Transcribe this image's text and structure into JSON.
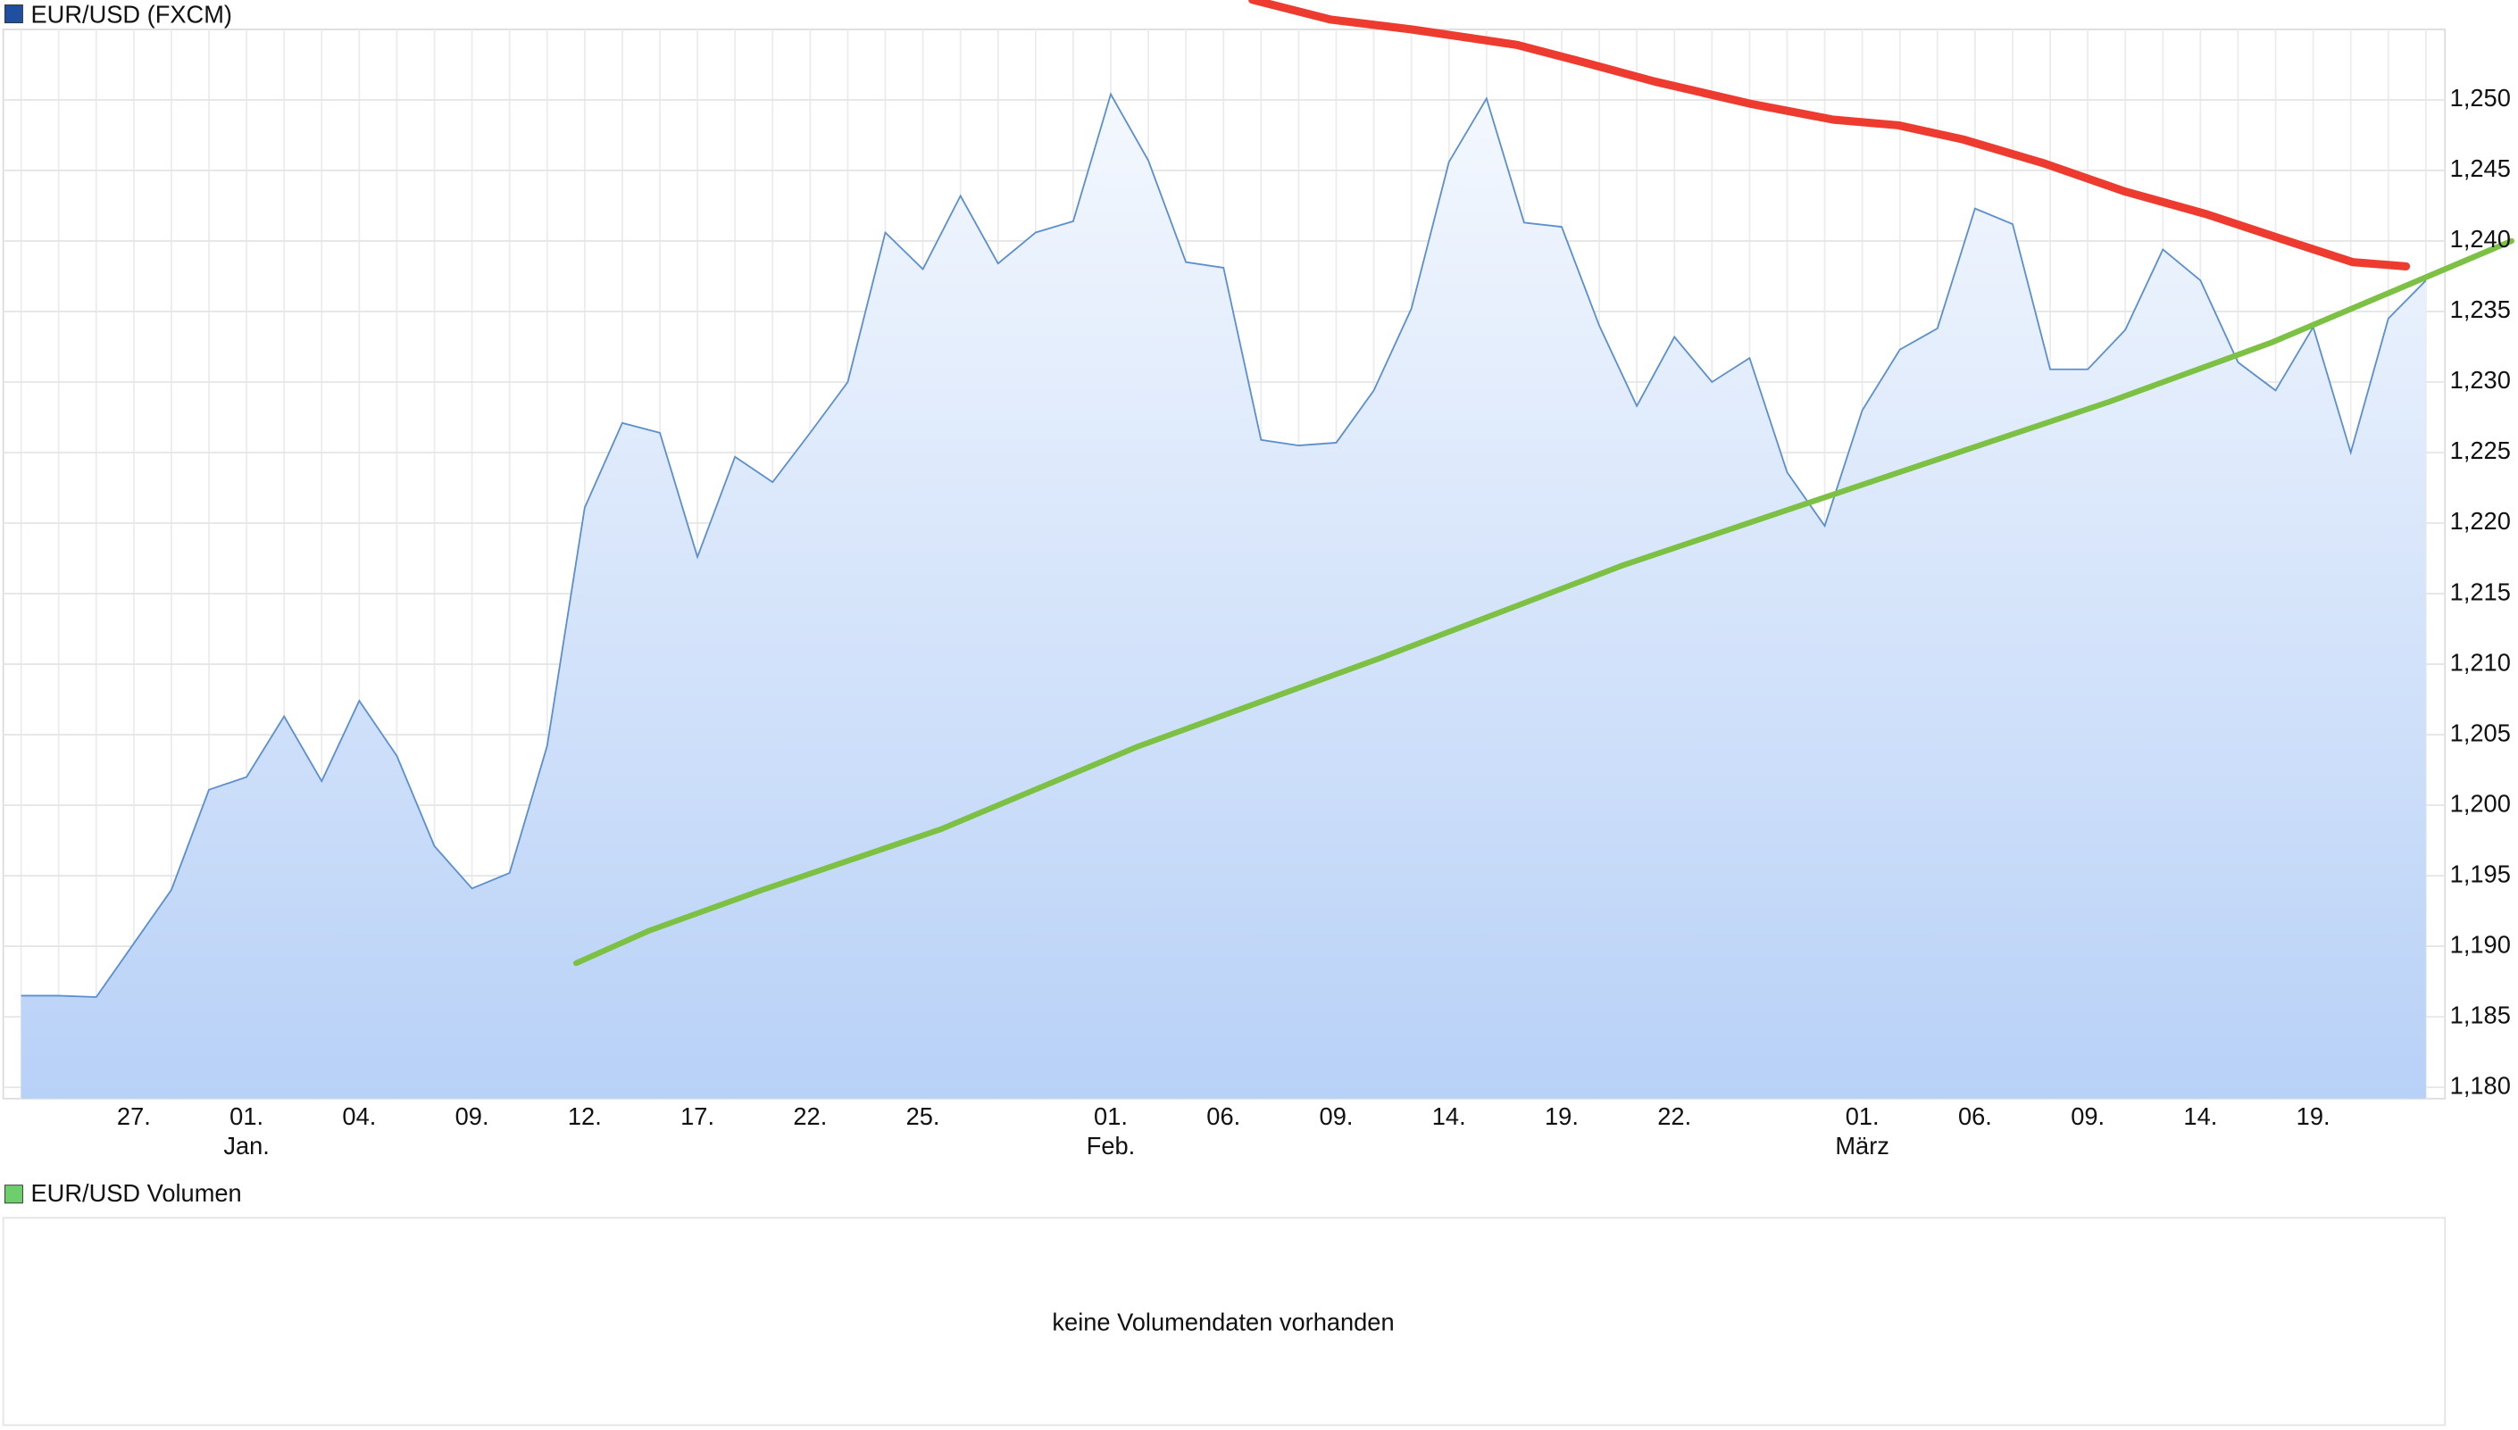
{
  "chart_data": {
    "type": "area",
    "title": "EUR/USD (FXCM)",
    "title_color": "#1f4fa0",
    "color": "#5b8fd0",
    "fill_top": "#f4f8fe",
    "fill_bottom": "#b8d1f7",
    "grid": true,
    "categories": [
      null,
      null,
      null,
      "27.",
      null,
      null,
      "01.",
      null,
      null,
      "04.",
      null,
      null,
      "09.",
      null,
      null,
      "12.",
      null,
      null,
      "17.",
      null,
      null,
      "22.",
      null,
      null,
      "25.",
      null,
      null,
      null,
      null,
      "01.",
      null,
      null,
      "06.",
      null,
      null,
      "09.",
      null,
      null,
      "14.",
      null,
      null,
      "19.",
      null,
      null,
      "22.",
      null,
      null,
      null,
      null,
      "01.",
      null,
      null,
      "06.",
      null,
      null,
      "09.",
      null,
      null,
      "14.",
      null,
      null,
      "19.",
      null,
      null,
      null
    ],
    "months": [
      null,
      null,
      null,
      null,
      null,
      null,
      "Jan.",
      null,
      null,
      null,
      null,
      null,
      null,
      null,
      null,
      null,
      null,
      null,
      null,
      null,
      null,
      null,
      null,
      null,
      null,
      null,
      null,
      null,
      null,
      "Feb.",
      null,
      null,
      null,
      null,
      null,
      null,
      null,
      null,
      null,
      null,
      null,
      null,
      null,
      null,
      null,
      null,
      null,
      null,
      null,
      "März",
      null,
      null,
      null,
      null,
      null,
      null,
      null,
      null,
      null,
      null,
      null,
      null,
      null,
      null,
      null
    ],
    "values": [
      1.1865,
      1.1865,
      1.1864,
      1.1902,
      1.194,
      1.2011,
      1.202,
      1.2063,
      1.2017,
      1.2074,
      1.2035,
      1.1971,
      1.1941,
      1.1952,
      1.2042,
      1.2211,
      1.2271,
      1.2264,
      1.2176,
      1.2247,
      1.2229,
      1.2264,
      1.23,
      1.2406,
      1.238,
      1.2432,
      1.2384,
      1.2406,
      1.2414,
      1.2504,
      1.2457,
      1.2385,
      1.2381,
      1.2259,
      1.2255,
      1.2257,
      1.2294,
      1.2352,
      1.2456,
      1.2501,
      1.2413,
      1.241,
      1.234,
      1.2283,
      1.2332,
      1.23,
      1.2317,
      1.2236,
      1.2198,
      1.228,
      1.2323,
      1.2338,
      1.2423,
      1.2412,
      1.2309,
      1.2309,
      1.2337,
      1.2394,
      1.2372,
      1.2314,
      1.2294,
      1.2339,
      1.225,
      1.2345,
      1.2372
    ],
    "ylim": [
      1.1792,
      1.255
    ],
    "yticks": [
      {
        "value": 1.18,
        "label": "1,180"
      },
      {
        "value": 1.185,
        "label": "1,185"
      },
      {
        "value": 1.19,
        "label": "1,190"
      },
      {
        "value": 1.195,
        "label": "1,195"
      },
      {
        "value": 1.2,
        "label": "1,200"
      },
      {
        "value": 1.205,
        "label": "1,205"
      },
      {
        "value": 1.21,
        "label": "1,210"
      },
      {
        "value": 1.215,
        "label": "1,215"
      },
      {
        "value": 1.22,
        "label": "1,220"
      },
      {
        "value": 1.225,
        "label": "1,225"
      },
      {
        "value": 1.23,
        "label": "1,230"
      },
      {
        "value": 1.235,
        "label": "1,235"
      },
      {
        "value": 1.24,
        "label": "1,240"
      },
      {
        "value": 1.245,
        "label": "1,245"
      },
      {
        "value": 1.25,
        "label": "1,250"
      }
    ],
    "drawings": [
      {
        "color": "#ee3b2f",
        "x": [
          32.77,
          34.84,
          37.0,
          39.81,
          41.54,
          43.48,
          46.07,
          48.23,
          49.96,
          51.68,
          53.84,
          56.0,
          58.16,
          60.32,
          62.05,
          63.47
        ],
        "values": [
          1.2571,
          1.2557,
          1.255,
          1.2539,
          1.2527,
          1.2513,
          1.2497,
          1.2486,
          1.2482,
          1.2472,
          1.2455,
          1.2435,
          1.2419,
          1.24,
          1.2385,
          1.2382
        ]
      },
      {
        "color": "#7cc143",
        "x": [
          14.77,
          16.71,
          19.73,
          24.48,
          29.66,
          36.14,
          42.62,
          49.09,
          55.57,
          59.89,
          62.91,
          66.28
        ],
        "values": [
          1.1888,
          1.1911,
          1.194,
          1.1983,
          1.2041,
          1.2104,
          1.217,
          1.2228,
          1.2286,
          1.2328,
          1.2362,
          1.24
        ]
      }
    ]
  },
  "volume_panel": {
    "title": "EUR/USD Volumen",
    "color": "#6ccf6c",
    "message": "keine Volumendaten vorhanden"
  }
}
